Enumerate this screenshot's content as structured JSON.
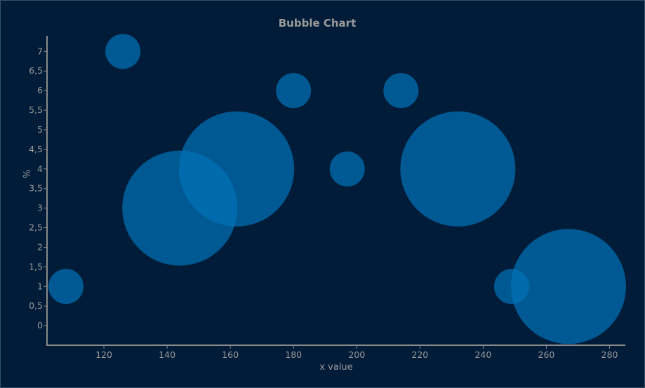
{
  "chart_data": {
    "type": "scatter",
    "subtype": "bubble",
    "title": "Bubble Chart",
    "xlabel": "x value",
    "ylabel": "%",
    "xlim": [
      102,
      285
    ],
    "ylim": [
      -0.5,
      7.4
    ],
    "xticks": [
      120,
      140,
      160,
      180,
      200,
      220,
      240,
      260,
      280
    ],
    "yticks": [
      0,
      0.5,
      1,
      1.5,
      2,
      2.5,
      3,
      3.5,
      4,
      4.5,
      5,
      5.5,
      6,
      6.5,
      7
    ],
    "ytick_labels": [
      "0",
      "0,5",
      "1",
      "1,5",
      "2",
      "2,5",
      "3",
      "3,5",
      "4",
      "4,5",
      "5",
      "5,5",
      "6",
      "6,5",
      "7"
    ],
    "grid": false,
    "bubble_color": "#0072b5",
    "series": [
      {
        "points": [
          {
            "x": 108,
            "y": 1,
            "size": 1
          },
          {
            "x": 126,
            "y": 7,
            "size": 1
          },
          {
            "x": 144,
            "y": 3,
            "size": 5
          },
          {
            "x": 162,
            "y": 4,
            "size": 5
          },
          {
            "x": 180,
            "y": 6,
            "size": 1
          },
          {
            "x": 197,
            "y": 4,
            "size": 1
          },
          {
            "x": 214,
            "y": 6,
            "size": 1
          },
          {
            "x": 232,
            "y": 4,
            "size": 5
          },
          {
            "x": 249,
            "y": 1,
            "size": 1
          },
          {
            "x": 267,
            "y": 1,
            "size": 5
          }
        ]
      }
    ]
  }
}
